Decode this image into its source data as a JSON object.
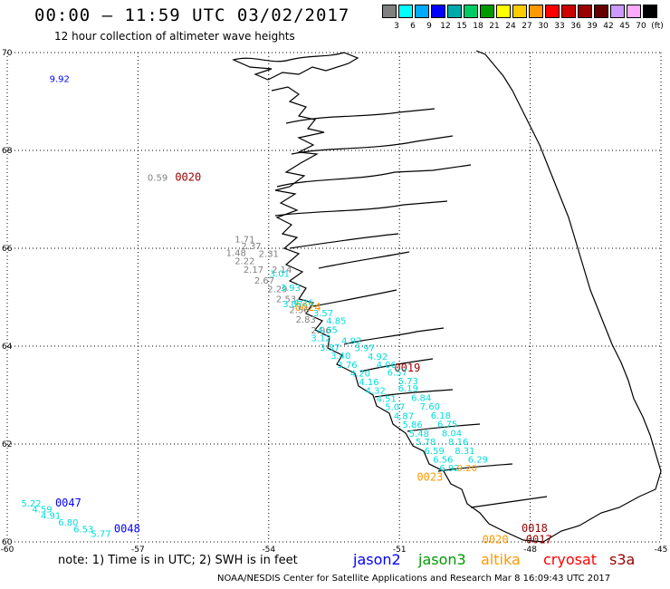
{
  "title": "00:00 – 11:59 UTC 03/02/2017",
  "subtitle": "12 hour collection of altimeter wave heights",
  "scale": {
    "colors": [
      "#808080",
      "#00ffff",
      "#00aaff",
      "#0000ff",
      "#00aaaa",
      "#00cc66",
      "#009900",
      "#ffff00",
      "#ffcc00",
      "#ff9900",
      "#ff0000",
      "#cc0000",
      "#990000",
      "#660000",
      "#cc99ff",
      "#ffaaff",
      "#000000"
    ],
    "labels": [
      "3",
      "6",
      "9",
      "12",
      "15",
      "18",
      "21",
      "24",
      "27",
      "30",
      "33",
      "36",
      "39",
      "42",
      "45",
      "70",
      "(ft)"
    ]
  },
  "axes": {
    "lat_labels": [
      "70",
      "68",
      "66",
      "64",
      "62",
      "60"
    ],
    "lon_labels": [
      "-60",
      "-57",
      "-54",
      "-51",
      "-48",
      "-45"
    ]
  },
  "chart_data": {
    "type": "scatter",
    "xlabel": "",
    "ylabel": "",
    "grid": true,
    "region": {
      "lon_range": [
        -60,
        -45
      ],
      "lat_range": [
        60,
        70
      ]
    },
    "pass_times": [
      {
        "label": "0020",
        "lon": -56.15,
        "lat": 67.38,
        "color": "#990000"
      },
      {
        "label": "0024",
        "lon": -53.4,
        "lat": 64.72,
        "color": "#ff9900"
      },
      {
        "label": "0019",
        "lon": -51.12,
        "lat": 63.48,
        "color": "#990000"
      },
      {
        "label": "0023",
        "lon": -50.6,
        "lat": 61.25,
        "color": "#ff9900"
      },
      {
        "label": "0018",
        "lon": -48.2,
        "lat": 60.2,
        "color": "#990000"
      },
      {
        "label": "0017",
        "lon": -48.1,
        "lat": 59.97,
        "color": "#990000"
      },
      {
        "label": "0020",
        "lon": -49.1,
        "lat": 59.97,
        "color": "#ff9900"
      },
      {
        "label": "0047",
        "lon": -58.9,
        "lat": 60.72,
        "color": "#0000ff"
      },
      {
        "label": "0048",
        "lon": -57.55,
        "lat": 60.19,
        "color": "#0000ff"
      }
    ],
    "series": [
      {
        "color": "#0000ff",
        "points": [
          {
            "lon": -58.8,
            "lat": 69.4,
            "v": "9.92"
          }
        ]
      },
      {
        "color": "#808080",
        "points": [
          {
            "lon": -56.55,
            "lat": 67.38,
            "v": "0.59"
          },
          {
            "lon": -54.55,
            "lat": 66.12,
            "v": "1.71"
          },
          {
            "lon": -54.4,
            "lat": 65.98,
            "v": "2.37"
          },
          {
            "lon": -54.75,
            "lat": 65.84,
            "v": "1.48"
          },
          {
            "lon": -54.0,
            "lat": 65.82,
            "v": "2.31"
          },
          {
            "lon": -54.55,
            "lat": 65.68,
            "v": "2.22"
          },
          {
            "lon": -54.35,
            "lat": 65.5,
            "v": "2.17"
          },
          {
            "lon": -53.7,
            "lat": 65.5,
            "v": "2.14"
          },
          {
            "lon": -54.1,
            "lat": 65.28,
            "v": "2.67"
          },
          {
            "lon": -53.8,
            "lat": 65.1,
            "v": "2.29"
          },
          {
            "lon": -53.6,
            "lat": 64.9,
            "v": "2.53"
          },
          {
            "lon": -53.3,
            "lat": 64.68,
            "v": "2.56"
          },
          {
            "lon": -53.15,
            "lat": 64.48,
            "v": "2.83"
          },
          {
            "lon": -52.8,
            "lat": 64.26,
            "v": "2.96"
          }
        ]
      },
      {
        "color": "#00dddd",
        "points": [
          {
            "lon": -53.75,
            "lat": 65.42,
            "v": "3.01"
          },
          {
            "lon": -53.5,
            "lat": 65.13,
            "v": "3.93"
          },
          {
            "lon": -53.45,
            "lat": 64.8,
            "v": "3.07"
          },
          {
            "lon": -53.2,
            "lat": 64.82,
            "v": "4.26"
          },
          {
            "lon": -52.75,
            "lat": 64.61,
            "v": "3.57"
          },
          {
            "lon": -52.45,
            "lat": 64.45,
            "v": "4.85"
          },
          {
            "lon": -52.65,
            "lat": 64.27,
            "v": "4.65"
          },
          {
            "lon": -52.8,
            "lat": 64.1,
            "v": "3.12"
          },
          {
            "lon": -52.1,
            "lat": 64.05,
            "v": "4.92"
          },
          {
            "lon": -52.6,
            "lat": 63.91,
            "v": "3.37"
          },
          {
            "lon": -51.8,
            "lat": 63.9,
            "v": "5.97"
          },
          {
            "lon": -52.35,
            "lat": 63.74,
            "v": "3.40"
          },
          {
            "lon": -51.5,
            "lat": 63.72,
            "v": "4.92"
          },
          {
            "lon": -52.2,
            "lat": 63.56,
            "v": "3.76"
          },
          {
            "lon": -51.3,
            "lat": 63.56,
            "v": "4.06"
          },
          {
            "lon": -51.9,
            "lat": 63.38,
            "v": "4.20"
          },
          {
            "lon": -51.05,
            "lat": 63.4,
            "v": "6.57"
          },
          {
            "lon": -51.7,
            "lat": 63.2,
            "v": "4.16"
          },
          {
            "lon": -50.8,
            "lat": 63.22,
            "v": "5.73"
          },
          {
            "lon": -50.8,
            "lat": 63.07,
            "v": "6.19"
          },
          {
            "lon": -51.55,
            "lat": 63.03,
            "v": "4.32"
          },
          {
            "lon": -50.5,
            "lat": 62.88,
            "v": "6.84"
          },
          {
            "lon": -51.3,
            "lat": 62.86,
            "v": "4.51"
          },
          {
            "lon": -50.3,
            "lat": 62.7,
            "v": "7.60"
          },
          {
            "lon": -51.1,
            "lat": 62.69,
            "v": "5.07"
          },
          {
            "lon": -50.05,
            "lat": 62.52,
            "v": "6.18"
          },
          {
            "lon": -50.9,
            "lat": 62.51,
            "v": "4.87"
          },
          {
            "lon": -49.9,
            "lat": 62.34,
            "v": "6.75"
          },
          {
            "lon": -50.7,
            "lat": 62.33,
            "v": "5.86"
          },
          {
            "lon": -49.8,
            "lat": 62.16,
            "v": "8.04"
          },
          {
            "lon": -50.55,
            "lat": 62.15,
            "v": "5.48"
          },
          {
            "lon": -49.65,
            "lat": 61.98,
            "v": "8.16"
          },
          {
            "lon": -50.4,
            "lat": 61.98,
            "v": "5.78"
          },
          {
            "lon": -49.5,
            "lat": 61.8,
            "v": "8.31"
          },
          {
            "lon": -50.2,
            "lat": 61.8,
            "v": "6.59"
          },
          {
            "lon": -50.0,
            "lat": 61.62,
            "v": "6.56"
          },
          {
            "lon": -49.2,
            "lat": 61.62,
            "v": "6.29"
          },
          {
            "lon": -49.85,
            "lat": 61.44,
            "v": "6.92"
          },
          {
            "lon": -59.45,
            "lat": 60.72,
            "v": "5.22"
          },
          {
            "lon": -59.2,
            "lat": 60.6,
            "v": "4.59"
          },
          {
            "lon": -59.0,
            "lat": 60.47,
            "v": "4.91"
          },
          {
            "lon": -58.6,
            "lat": 60.33,
            "v": "6.80"
          },
          {
            "lon": -58.25,
            "lat": 60.19,
            "v": "6.53"
          },
          {
            "lon": -57.85,
            "lat": 60.1,
            "v": "5.77"
          }
        ]
      },
      {
        "color": "#ff9900",
        "points": [
          {
            "lon": -49.45,
            "lat": 61.44,
            "v": "9.20"
          }
        ]
      }
    ]
  },
  "note": "note: 1) Time is in UTC; 2) SWH is in feet",
  "satellites": [
    {
      "name": "jason2",
      "color": "#0000ff"
    },
    {
      "name": "jason3",
      "color": "#009900"
    },
    {
      "name": "altika",
      "color": "#ff9900"
    },
    {
      "name": "cryosat",
      "color": "#ff0000"
    },
    {
      "name": "s3a",
      "color": "#990000"
    }
  ],
  "footer": "NOAA/NESDIS Center for Satellite Applications and Research    Mar  8 16:09:43 UTC 2017"
}
